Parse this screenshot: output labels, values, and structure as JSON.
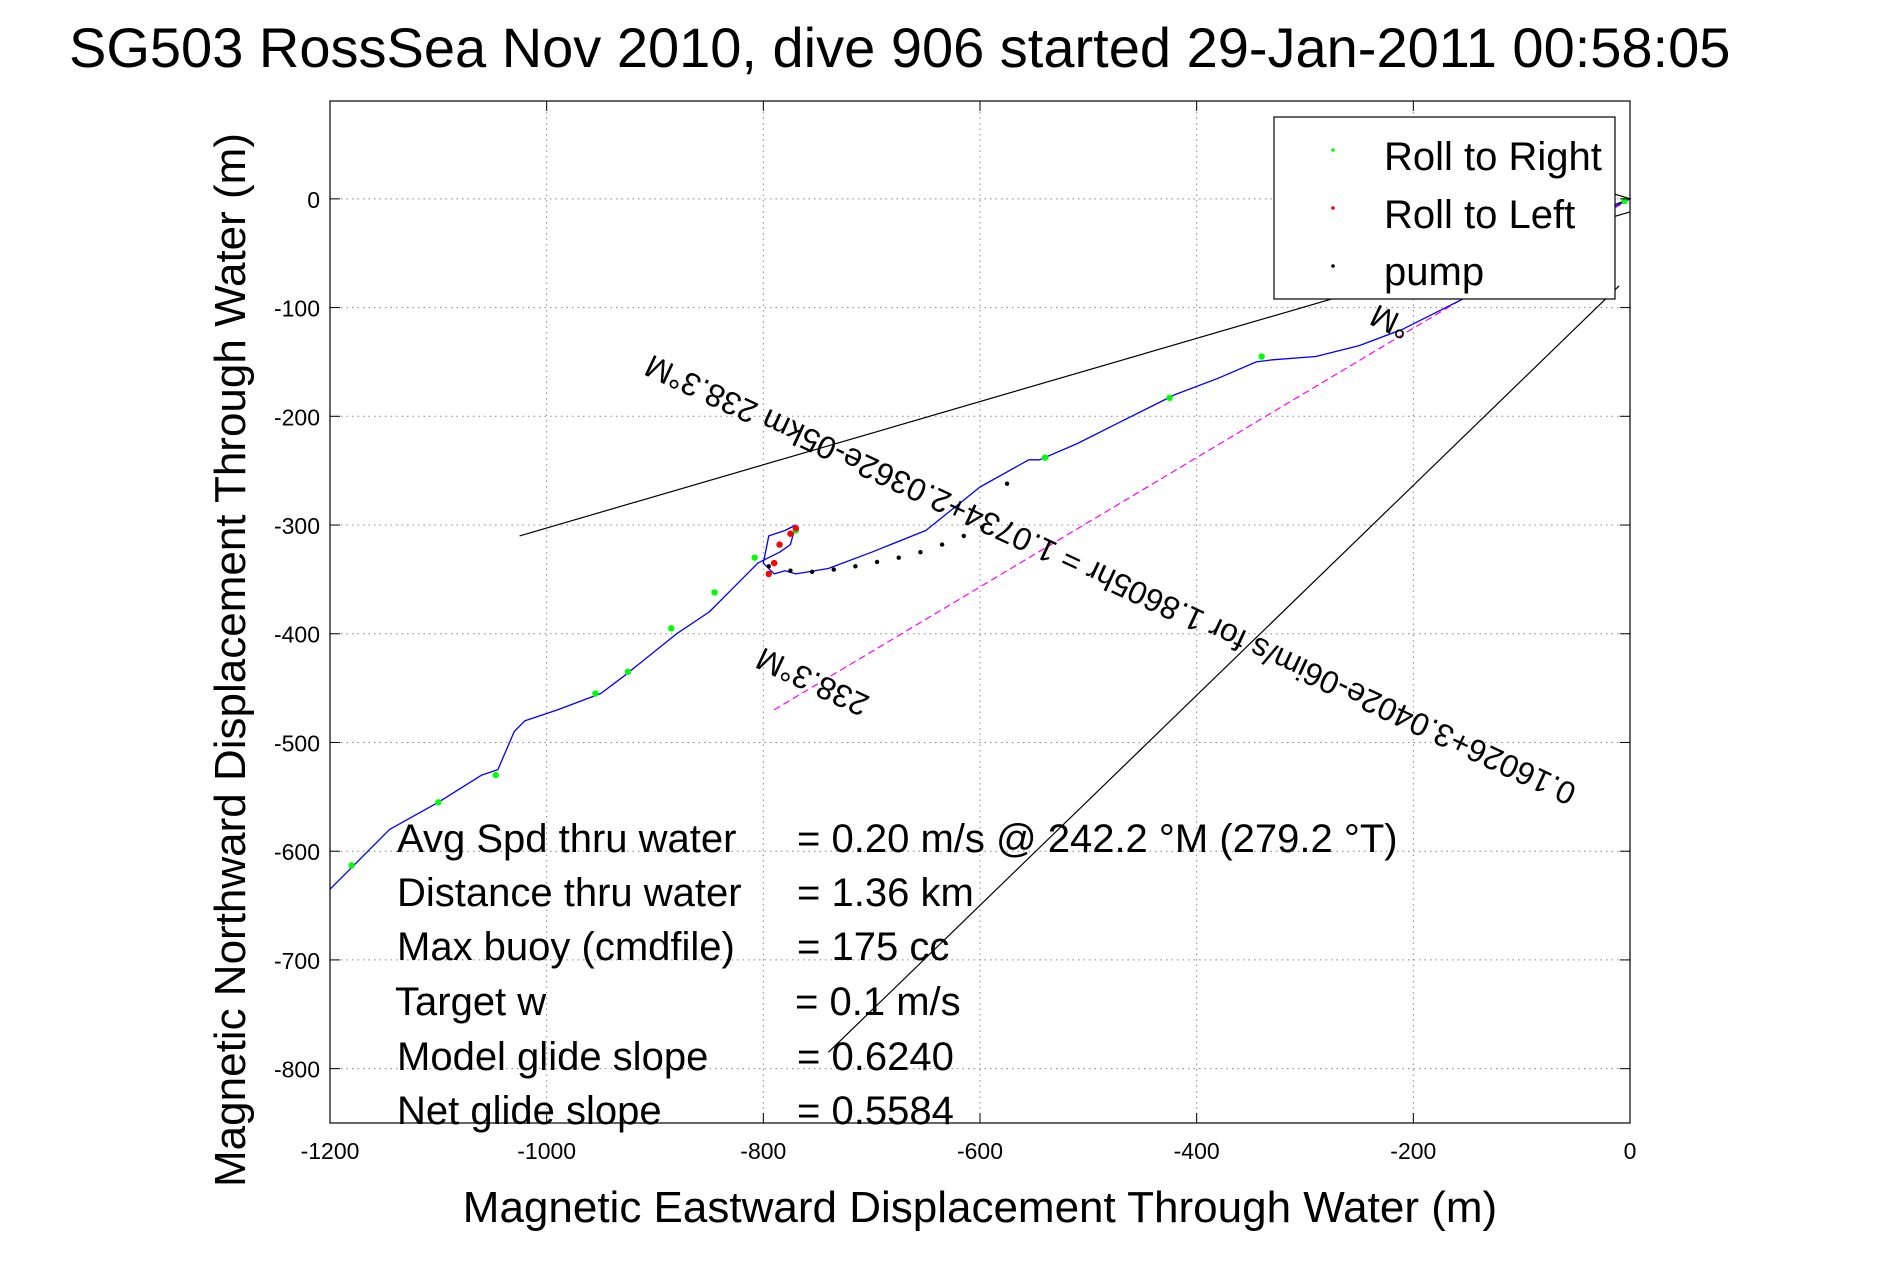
{
  "chart_data": {
    "type": "line",
    "title": "SG503 RossSea Nov 2010, dive 906 started 29-Jan-2011 00:58:05",
    "xlabel": "Magnetic Eastward Displacement Through Water (m)",
    "ylabel": "Magnetic Northward Displacement Through Water (m)",
    "xlim": [
      -1200,
      0
    ],
    "ylim": [
      -850,
      90
    ],
    "xticks": [
      -1200,
      -1000,
      -800,
      -600,
      -400,
      -200,
      0
    ],
    "yticks": [
      0,
      -100,
      -200,
      -300,
      -400,
      -500,
      -600,
      -700,
      -800
    ],
    "grid": true,
    "legend_position": "top-right",
    "legend": [
      {
        "label": "Roll to Right",
        "color": "#00ff00"
      },
      {
        "label": "Roll to Left",
        "color": "#ff0000"
      },
      {
        "label": "pump",
        "color": "#000000"
      }
    ],
    "track": {
      "name": "track",
      "color": "#0000ff",
      "x": [
        0,
        -20,
        -50,
        -90,
        -130,
        -170,
        -210,
        -250,
        -290,
        -330,
        -345,
        -380,
        -420,
        -430,
        -470,
        -510,
        -545,
        -555,
        -600,
        -650,
        -700,
        -740,
        -770,
        -780,
        -790,
        -800,
        -795,
        -780,
        -770,
        -775,
        -785,
        -795,
        -805,
        -830,
        -850,
        -880,
        -905,
        -930,
        -950,
        -990,
        -1020,
        -1030,
        -1045,
        -1060,
        -1100,
        -1145,
        -1175,
        -1200
      ],
      "y": [
        0,
        -10,
        -30,
        -55,
        -80,
        -100,
        -120,
        -135,
        -145,
        -148,
        -150,
        -165,
        -180,
        -185,
        -205,
        -225,
        -240,
        -240,
        -265,
        -305,
        -325,
        -340,
        -345,
        -342,
        -345,
        -335,
        -310,
        -305,
        -300,
        -318,
        -325,
        -330,
        -335,
        -360,
        -380,
        -400,
        -420,
        -440,
        -455,
        -470,
        -480,
        -490,
        -525,
        -530,
        -555,
        -580,
        -610,
        -635
      ]
    },
    "roll_to_right": {
      "x": [
        -5,
        -340,
        -425,
        -540,
        -770,
        -808,
        -845,
        -885,
        -925,
        -955,
        -1047,
        -1100,
        -1180
      ],
      "y": [
        -2,
        -145,
        -183,
        -238,
        -305,
        -330,
        -362,
        -395,
        -435,
        -455,
        -530,
        -555,
        -613
      ]
    },
    "roll_to_left": {
      "x": [
        -770,
        -775,
        -785,
        -790,
        -795
      ],
      "y": [
        -303,
        -308,
        -318,
        -335,
        -345
      ]
    },
    "pump": {
      "x": [
        -795,
        -775,
        -755,
        -735,
        -715,
        -695,
        -675,
        -655,
        -635,
        -615,
        -598,
        -575
      ],
      "y": [
        -338,
        -342,
        -343,
        -341,
        -338,
        -334,
        -330,
        -325,
        -318,
        -310,
        -302,
        -262
      ]
    },
    "current_arrow": {
      "label": "0.16026+3.0402e-06im/s for 1.8605hr = 1.0734+2.0362e-05km 238.3°M",
      "x": [
        0,
        -790
      ],
      "y": [
        0,
        -470
      ]
    },
    "direction_lines": [
      {
        "x": [
          0,
          -1025
        ],
        "y": [
          -12,
          -310
        ]
      },
      {
        "x": [
          -10,
          -740
        ],
        "y": [
          -80,
          -785
        ]
      }
    ],
    "annotations": {
      "heading_right": "238.3°M",
      "heading_top": "°M"
    },
    "stats": [
      {
        "label": "Avg Spd thru water",
        "value": "=  0.20 m/s @ 242.2 °M (279.2 °T)"
      },
      {
        "label": "Distance thru water",
        "value": "=  1.36 km"
      },
      {
        "label": "Max buoy (cmdfile)",
        "value": "= 175 cc"
      },
      {
        "label": "Target w",
        "value": "= 0.1 m/s"
      },
      {
        "label": "Model glide slope",
        "value": "= 0.6240"
      },
      {
        "label": "Net glide slope",
        "value": "= 0.5584"
      }
    ]
  }
}
